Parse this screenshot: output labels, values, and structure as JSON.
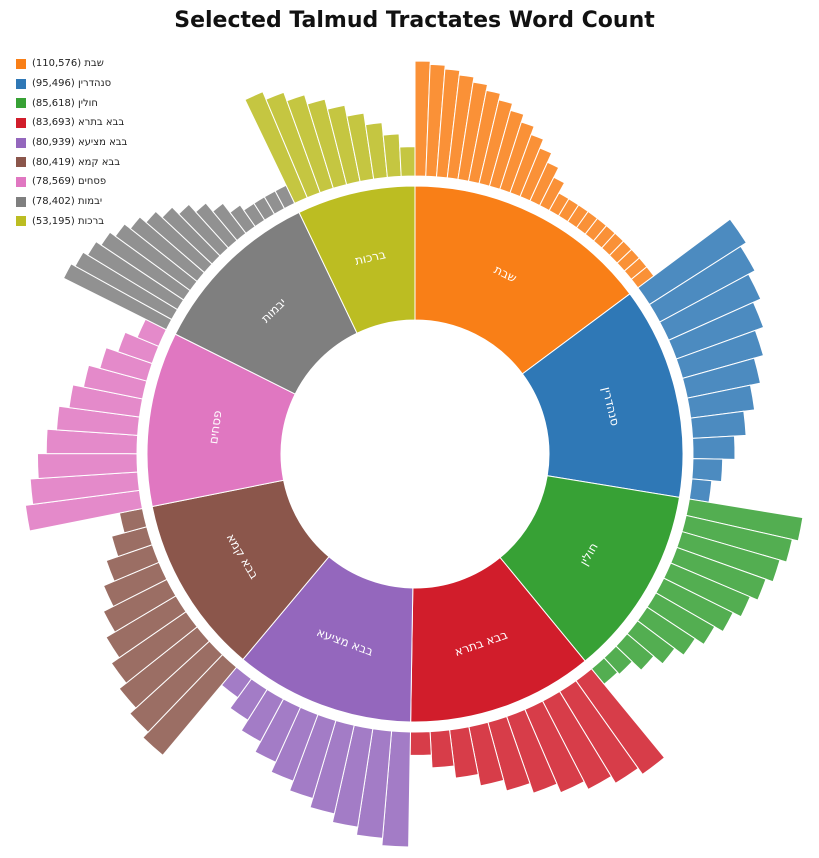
{
  "chart_data": {
    "type": "sunburst",
    "title": "Selected Talmud Tractates Word Count",
    "legend_position": "top-left",
    "series": [
      {
        "name": "שבת",
        "value": 110576,
        "color": "#f97f17",
        "sub_segments": 24,
        "legend": "שבת (110,576)"
      },
      {
        "name": "סנהדרין",
        "value": 95496,
        "color": "#2f78b6",
        "sub_segments": 11,
        "legend": "סנהדרין (95,496)"
      },
      {
        "name": "חולין",
        "value": 85618,
        "color": "#37a135",
        "sub_segments": 12,
        "legend": "חולין (85,618)"
      },
      {
        "name": "בבא בתרא",
        "value": 83693,
        "color": "#d11d2b",
        "sub_segments": 10,
        "legend": "בבא בתרא (83,693)"
      },
      {
        "name": "בבא מציעא",
        "value": 80939,
        "color": "#9467bd",
        "sub_segments": 10,
        "legend": "בבא מציעא (80,939)"
      },
      {
        "name": "בבא קמא",
        "value": 80419,
        "color": "#8b564b",
        "sub_segments": 10,
        "legend": "בבא קמא (80,419)"
      },
      {
        "name": "פסחים",
        "value": 78569,
        "color": "#e077c1",
        "sub_segments": 10,
        "legend": "פסחים (78,569)"
      },
      {
        "name": "יבמות",
        "value": 78402,
        "color": "#7f7f7f",
        "sub_segments": 16,
        "legend": "יבמות (78,402)"
      },
      {
        "name": "ברכות",
        "value": 53195,
        "color": "#bcbd22",
        "sub_segments": 9,
        "legend": "ברכות (53,195)"
      }
    ]
  }
}
